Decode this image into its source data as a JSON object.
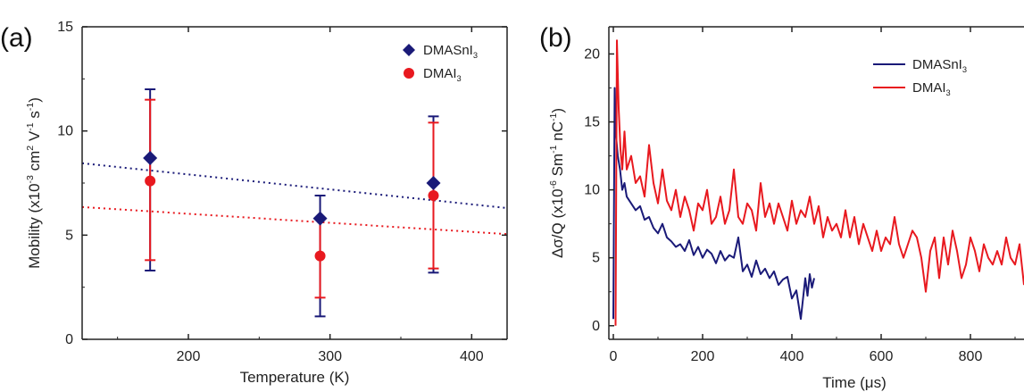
{
  "colors": {
    "blue": "#1a1a78",
    "red": "#e8191f",
    "axis": "#222222"
  },
  "chart_data": [
    {
      "panel_label": "(a)",
      "type": "scatter",
      "xlabel": "Temperature (K)",
      "ylabel_parts": [
        "Mobility (x10",
        "-3",
        " cm",
        "2",
        " V",
        "-1",
        " s",
        "-1",
        ")"
      ],
      "xlim": [
        125,
        425
      ],
      "ylim": [
        0,
        15
      ],
      "xticks": [
        "200",
        "300",
        "400"
      ],
      "yticks": [
        "0",
        "5",
        "10",
        "15"
      ],
      "legend_position": "top-right",
      "series": [
        {
          "name": [
            "DMASnI",
            "3"
          ],
          "color": "#1a1a78",
          "marker": "diamond",
          "x": [
            173,
            293,
            373
          ],
          "y": [
            8.7,
            5.8,
            7.5
          ],
          "err_low": [
            3.3,
            1.1,
            3.2
          ],
          "err_high": [
            12.0,
            6.9,
            10.7
          ],
          "fit": {
            "x": [
              125,
              425
            ],
            "y": [
              8.45,
              6.3
            ]
          }
        },
        {
          "name": [
            "DMAI",
            "3"
          ],
          "color": "#e8191f",
          "marker": "circle",
          "x": [
            173,
            293,
            373
          ],
          "y": [
            7.6,
            4.0,
            6.9
          ],
          "err_low": [
            3.8,
            2.0,
            3.4
          ],
          "err_high": [
            11.5,
            5.8,
            10.4
          ],
          "fit": {
            "x": [
              125,
              425
            ],
            "y": [
              6.35,
              5.05
            ]
          }
        }
      ]
    },
    {
      "panel_label": "(b)",
      "type": "line",
      "xlabel_parts": [
        "Time (",
        "μ",
        "s)"
      ],
      "ylabel_parts": [
        "Δσ/Q (x10",
        "-6",
        " Sm",
        "-1",
        " nC",
        "-1",
        ")"
      ],
      "xlim": [
        -10,
        920
      ],
      "ylim": [
        -1,
        22
      ],
      "xticks": [
        "0",
        "200",
        "400",
        "600",
        "800"
      ],
      "yticks": [
        "0",
        "5",
        "10",
        "15",
        "20"
      ],
      "legend_position": "top-right",
      "series": [
        {
          "name": [
            "DMASnI",
            "3"
          ],
          "color": "#1a1a78",
          "x": [
            0,
            3,
            6,
            10,
            15,
            20,
            25,
            30,
            40,
            50,
            60,
            70,
            80,
            90,
            100,
            110,
            120,
            130,
            140,
            150,
            160,
            170,
            180,
            190,
            200,
            210,
            220,
            230,
            240,
            250,
            260,
            270,
            280,
            290,
            300,
            310,
            320,
            330,
            340,
            350,
            360,
            370,
            380,
            390,
            400,
            410,
            420,
            425,
            430,
            435,
            440,
            445,
            450
          ],
          "y": [
            0.5,
            17.5,
            14.0,
            12.5,
            11.5,
            10.0,
            10.5,
            9.5,
            9.0,
            8.5,
            8.8,
            7.8,
            8.0,
            7.2,
            6.8,
            7.5,
            6.5,
            6.2,
            5.8,
            6.0,
            5.5,
            6.3,
            5.2,
            5.8,
            5.0,
            5.6,
            5.3,
            4.6,
            5.5,
            4.8,
            5.2,
            5.0,
            6.5,
            4.0,
            4.5,
            3.6,
            4.8,
            3.8,
            4.2,
            3.5,
            4.0,
            3.0,
            3.4,
            3.6,
            2.0,
            2.6,
            0.5,
            2.0,
            3.5,
            2.2,
            3.8,
            2.8,
            3.5
          ]
        },
        {
          "name": [
            "DMAI",
            "3"
          ],
          "color": "#e8191f",
          "x": [
            5,
            8,
            12,
            16,
            20,
            25,
            30,
            40,
            50,
            60,
            70,
            80,
            90,
            100,
            110,
            120,
            130,
            140,
            150,
            160,
            170,
            180,
            190,
            200,
            210,
            220,
            230,
            240,
            250,
            260,
            270,
            280,
            290,
            300,
            310,
            320,
            330,
            340,
            350,
            360,
            370,
            380,
            390,
            400,
            410,
            420,
            430,
            440,
            450,
            460,
            470,
            480,
            490,
            500,
            510,
            520,
            530,
            540,
            550,
            560,
            570,
            580,
            590,
            600,
            610,
            620,
            630,
            640,
            650,
            660,
            670,
            680,
            690,
            700,
            710,
            720,
            730,
            740,
            750,
            760,
            770,
            780,
            790,
            800,
            810,
            820,
            830,
            840,
            850,
            860,
            870,
            880,
            890,
            900,
            910,
            920
          ],
          "y": [
            0,
            21.0,
            16.0,
            13.0,
            11.5,
            14.3,
            11.5,
            12.5,
            10.5,
            11.0,
            9.5,
            13.3,
            10.5,
            9.0,
            11.5,
            9.2,
            8.5,
            10.0,
            8.0,
            9.5,
            8.5,
            7.0,
            9.0,
            8.5,
            10.0,
            7.5,
            8.0,
            9.5,
            7.5,
            8.5,
            11.5,
            8.0,
            7.5,
            9.0,
            8.5,
            7.0,
            10.5,
            8.0,
            9.0,
            7.5,
            9.0,
            8.0,
            7.0,
            9.2,
            7.5,
            8.5,
            8.0,
            9.5,
            7.5,
            8.8,
            6.5,
            8.0,
            7.0,
            7.5,
            6.5,
            8.5,
            6.5,
            8.0,
            6.0,
            7.5,
            6.5,
            5.5,
            7.0,
            5.5,
            6.5,
            6.0,
            8.0,
            6.0,
            5.0,
            6.0,
            7.0,
            6.5,
            5.0,
            2.5,
            5.5,
            6.5,
            3.5,
            6.5,
            4.5,
            7.0,
            5.5,
            3.5,
            4.5,
            6.5,
            5.5,
            4.0,
            6.0,
            5.0,
            4.5,
            5.5,
            4.5,
            6.5,
            5.0,
            4.5,
            6.0,
            3.0
          ]
        }
      ]
    }
  ]
}
